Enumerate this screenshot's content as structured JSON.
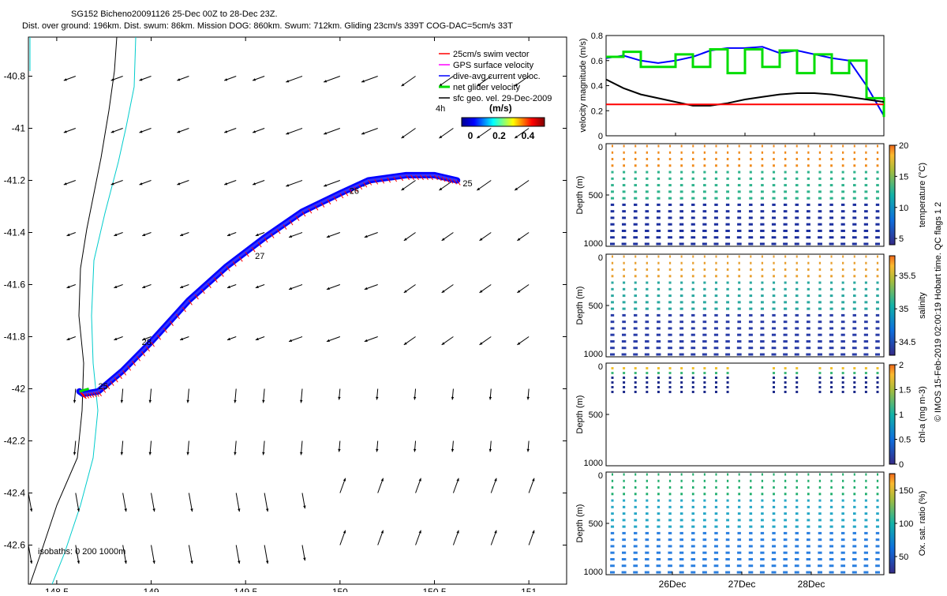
{
  "header": {
    "line1": "SG152 Bicheno20091126 25-Dec 00Z to 28-Dec 23Z.",
    "line2": "Dist. over ground: 196km. Dist. swum: 86km. Mission DOG: 860km. Swum: 712km. Gliding 23cm/s 339T COG-DAC=5cm/s 33T"
  },
  "map": {
    "x_ticks": [
      "148.5",
      "149",
      "149.5",
      "150",
      "150.5",
      "151"
    ],
    "y_ticks": [
      "-40.8",
      "-41",
      "-41.2",
      "-41.4",
      "-41.6",
      "-41.8",
      "-42",
      "-42.2",
      "-42.4",
      "-42.6"
    ],
    "isobaths_label": "isobaths: 0   200  1000m",
    "day_labels": [
      "25",
      "26",
      "27",
      "28",
      "25"
    ],
    "legend": {
      "items": [
        {
          "label": "25cm/s swim vector",
          "color": "#ff0000"
        },
        {
          "label": "GPS surface velocity",
          "color": "#ff00ff"
        },
        {
          "label": "dive-avg current veloc.",
          "color": "#0000ff"
        },
        {
          "label": "net glider velocity",
          "color": "#00dd00"
        },
        {
          "label": "sfc geo. vel. 29-Dec-2009",
          "color": "#000000"
        }
      ],
      "hour_label": "4h",
      "colorbar_title": "(m/s)",
      "colorbar_ticks": [
        "0",
        "0.2",
        "0.4"
      ]
    }
  },
  "velocity_panel": {
    "ylabel": "velocity magnitude (m/s)",
    "yticks": [
      "0",
      "0.2",
      "0.4",
      "0.6",
      "0.8"
    ]
  },
  "profile_panels": [
    {
      "ylabel": "Depth (m)",
      "cbar_label": "temperature (°C)",
      "cbar_ticks": [
        "5",
        "10",
        "15",
        "20"
      ],
      "yticks": [
        "0",
        "500",
        "1000"
      ]
    },
    {
      "ylabel": "Depth (m)",
      "cbar_label": "salinity",
      "cbar_ticks": [
        "34.5",
        "35",
        "35.5"
      ],
      "yticks": [
        "0",
        "500",
        "1000"
      ]
    },
    {
      "ylabel": "Depth (m)",
      "cbar_label": "chl-a (mg m-3)",
      "cbar_ticks": [
        "0",
        "0.5",
        "1",
        "1.5",
        "2"
      ],
      "yticks": [
        "0",
        "500",
        "1000"
      ]
    },
    {
      "ylabel": "Depth (m)",
      "cbar_label": "Ox. sat. ratio (%)",
      "cbar_ticks": [
        "50",
        "100",
        "150"
      ],
      "yticks": [
        "0",
        "500",
        "1000"
      ]
    }
  ],
  "time_axis": {
    "ticks": [
      "26Dec",
      "27Dec",
      "28Dec"
    ]
  },
  "footer_note": "© IMOS 15-Feb-2019 02:00:19 Hobart time. QC flags 1  2",
  "chart_data": [
    {
      "type": "scatter",
      "title": "SG152 Bicheno20091126 25-Dec 00Z to 28-Dec 23Z.",
      "xlim": [
        148.35,
        151.2
      ],
      "ylim": [
        -42.75,
        -40.65
      ],
      "track": {
        "x": [
          150.62,
          150.5,
          150.35,
          150.15,
          150.0,
          149.8,
          149.6,
          149.4,
          149.2,
          149.0,
          148.85,
          148.72,
          148.64,
          148.62
        ],
        "y": [
          -41.2,
          -41.18,
          -41.18,
          -41.2,
          -41.25,
          -41.32,
          -41.42,
          -41.53,
          -41.66,
          -41.82,
          -41.93,
          -42.01,
          -42.02,
          -42.01
        ]
      },
      "day_positions": [
        {
          "label": "25",
          "x": 150.65,
          "y": -41.21
        },
        {
          "label": "26",
          "x": 150.05,
          "y": -41.24
        },
        {
          "label": "27",
          "x": 149.55,
          "y": -41.49
        },
        {
          "label": "28",
          "x": 148.95,
          "y": -41.82
        },
        {
          "label": "25",
          "x": 148.72,
          "y": -41.99
        }
      ],
      "sfc_geo_velocity_grid": {
        "lon": [
          148.35,
          148.6,
          148.85,
          149.0,
          149.2,
          149.45,
          149.6,
          149.8,
          150.0,
          150.2,
          150.4,
          150.6,
          150.8,
          151.0
        ],
        "lat": [
          -40.8,
          -41.0,
          -41.2,
          -41.4,
          -41.6,
          -41.8,
          -42.0,
          -42.2,
          -42.4,
          -42.6
        ]
      }
    },
    {
      "type": "line",
      "ylabel": "velocity magnitude (m/s)",
      "ylim": [
        0,
        0.8
      ],
      "x": [
        0,
        0.25,
        0.5,
        0.75,
        1.0,
        1.25,
        1.5,
        1.75,
        2.0,
        2.25,
        2.5,
        2.75,
        3.0,
        3.25,
        3.5,
        3.75,
        4.0
      ],
      "series": [
        {
          "color": "#0000ff",
          "values": [
            0.62,
            0.64,
            0.6,
            0.58,
            0.6,
            0.63,
            0.68,
            0.7,
            0.7,
            0.71,
            0.66,
            0.68,
            0.65,
            0.62,
            0.6,
            0.4,
            0.16
          ]
        },
        {
          "color": "#00dd00",
          "values": [
            0.63,
            0.67,
            0.55,
            0.55,
            0.65,
            0.55,
            0.69,
            0.5,
            0.69,
            0.55,
            0.68,
            0.5,
            0.65,
            0.5,
            0.6,
            0.3,
            0.15
          ]
        },
        {
          "color": "#000000",
          "values": [
            0.45,
            0.38,
            0.33,
            0.3,
            0.27,
            0.24,
            0.24,
            0.26,
            0.29,
            0.31,
            0.33,
            0.34,
            0.34,
            0.33,
            0.31,
            0.29,
            0.27
          ]
        },
        {
          "color": "#ff0000",
          "values": [
            0.25,
            0.25,
            0.25,
            0.25,
            0.25,
            0.25,
            0.25,
            0.25,
            0.25,
            0.25,
            0.25,
            0.25,
            0.25,
            0.25,
            0.25,
            0.25,
            0.25
          ]
        }
      ]
    },
    {
      "type": "scatter",
      "ylabel": "Depth (m)",
      "cbar_label": "temperature (°C)",
      "ylim": [
        1000,
        0
      ],
      "clim": [
        4,
        20
      ]
    },
    {
      "type": "scatter",
      "ylabel": "Depth (m)",
      "cbar_label": "salinity",
      "ylim": [
        1000,
        0
      ],
      "clim": [
        34.3,
        35.8
      ]
    },
    {
      "type": "scatter",
      "ylabel": "Depth (m)",
      "cbar_label": "chl-a (mg m-3)",
      "ylim": [
        1000,
        0
      ],
      "clim": [
        0,
        2
      ]
    },
    {
      "type": "scatter",
      "ylabel": "Depth (m)",
      "cbar_label": "Ox. sat. ratio (%)",
      "ylim": [
        1000,
        0
      ],
      "clim": [
        25,
        175
      ]
    }
  ]
}
